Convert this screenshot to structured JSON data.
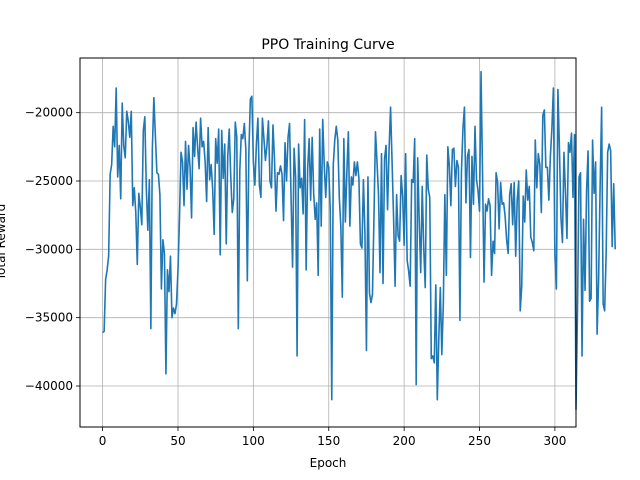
{
  "chart_data": {
    "type": "line",
    "title": "PPO Training Curve",
    "xlabel": "Epoch",
    "ylabel": "Total Reward",
    "xlim": [
      -15,
      314
    ],
    "ylim": [
      -43000,
      -16000
    ],
    "xticks": [
      0,
      50,
      100,
      150,
      200,
      250,
      300
    ],
    "yticks": [
      -40000,
      -35000,
      -30000,
      -25000,
      -20000
    ],
    "ytick_labels": [
      "−40000",
      "−35000",
      "−30000",
      "−25000",
      "−20000"
    ],
    "grid": true,
    "series": [
      {
        "color": "#1f77b4",
        "x_start": 0,
        "x_step": 1,
        "values": [
          -36100,
          -36000,
          -32200,
          -31500,
          -30500,
          -24500,
          -23800,
          -21000,
          -22500,
          -18200,
          -24700,
          -22400,
          -26300,
          -19300,
          -22400,
          -23300,
          -19900,
          -20600,
          -21800,
          -19900,
          -26800,
          -25500,
          -27300,
          -31100,
          -25900,
          -26900,
          -28200,
          -21300,
          -20300,
          -25600,
          -28600,
          -24900,
          -35800,
          -22600,
          -18900,
          -21700,
          -24400,
          -24500,
          -26000,
          -32900,
          -29300,
          -30300,
          -39100,
          -31500,
          -33100,
          -30500,
          -35000,
          -34300,
          -34700,
          -34000,
          -31500,
          -27700,
          -22900,
          -23600,
          -26800,
          -22100,
          -25600,
          -22400,
          -24000,
          -27700,
          -21100,
          -23200,
          -20700,
          -22500,
          -24100,
          -20400,
          -22500,
          -22100,
          -23600,
          -26500,
          -21100,
          -24900,
          -23800,
          -25600,
          -28900,
          -21900,
          -23700,
          -21200,
          -30400,
          -21300,
          -24800,
          -22300,
          -29600,
          -23200,
          -21200,
          -24700,
          -27300,
          -26300,
          -20700,
          -21800,
          -35800,
          -24200,
          -21600,
          -21900,
          -20800,
          -22700,
          -32300,
          -23000,
          -19000,
          -18800,
          -23600,
          -25300,
          -22300,
          -20400,
          -25300,
          -26200,
          -20400,
          -21900,
          -23500,
          -22400,
          -20600,
          -25000,
          -25500,
          -20900,
          -23400,
          -27200,
          -24400,
          -24500,
          -23900,
          -24500,
          -27900,
          -22200,
          -25000,
          -21800,
          -20800,
          -26200,
          -31300,
          -22600,
          -24700,
          -37800,
          -22300,
          -25500,
          -24800,
          -27400,
          -20500,
          -31500,
          -24100,
          -21900,
          -26400,
          -21800,
          -25900,
          -27800,
          -26600,
          -31900,
          -21200,
          -28300,
          -20500,
          -23800,
          -26200,
          -23600,
          -24000,
          -27200,
          -41000,
          -23800,
          -22000,
          -21000,
          -22000,
          -26200,
          -28300,
          -33500,
          -21900,
          -28000,
          -24400,
          -21400,
          -28300,
          -24700,
          -25300,
          -23600,
          -24600,
          -23600,
          -24800,
          -29600,
          -29900,
          -24900,
          -28900,
          -37400,
          -24700,
          -33200,
          -33900,
          -33300,
          -27600,
          -21400,
          -23600,
          -26000,
          -31700,
          -23000,
          -32500,
          -23400,
          -22400,
          -27100,
          -22700,
          -19600,
          -23600,
          -27700,
          -32700,
          -26000,
          -29000,
          -29400,
          -24600,
          -26100,
          -29700,
          -23000,
          -30800,
          -31600,
          -32700,
          -24900,
          -25100,
          -21900,
          -39900,
          -23300,
          -27900,
          -31700,
          -25400,
          -29900,
          -32800,
          -23100,
          -25600,
          -26200,
          -38000,
          -37800,
          -38300,
          -32600,
          -41000,
          -36500,
          -32800,
          -37700,
          -34000,
          -26000,
          -31900,
          -22500,
          -23900,
          -26800,
          -22700,
          -22600,
          -25400,
          -23500,
          -24000,
          -35200,
          -24400,
          -21200,
          -19600,
          -26600,
          -23200,
          -22700,
          -30600,
          -23200,
          -26700,
          -21000,
          -24900,
          -25700,
          -27200,
          -17000,
          -24400,
          -32400,
          -26700,
          -27200,
          -26300,
          -26800,
          -31900,
          -29400,
          -30300,
          -24400,
          -25100,
          -28500,
          -25100,
          -26700,
          -26600,
          -27600,
          -29300,
          -30300,
          -26000,
          -25200,
          -28200,
          -25100,
          -30500,
          -26400,
          -25000,
          -34500,
          -32700,
          -26100,
          -28000,
          -24200,
          -26400,
          -25400,
          -29100,
          -29500,
          -30100,
          -22000,
          -25500,
          -23000,
          -23800,
          -27300,
          -20200,
          -19800,
          -24000,
          -24000,
          -26400,
          -23200,
          -21200,
          -18200,
          -30400,
          -32900,
          -18300,
          -22600,
          -27600,
          -29500,
          -22900,
          -25800,
          -29200,
          -22200,
          -22900,
          -21500,
          -26200,
          -21600,
          -41700,
          -34300,
          -24700,
          -24400,
          -37800,
          -27800,
          -33000,
          -25800,
          -22800,
          -33800,
          -33600,
          -22000,
          -25900,
          -23600,
          -36200,
          -32200,
          -25400,
          -19600,
          -34000,
          -34500,
          -30300,
          -22900,
          -22300,
          -22800,
          -29800,
          -25200,
          -30000
        ]
      }
    ]
  }
}
